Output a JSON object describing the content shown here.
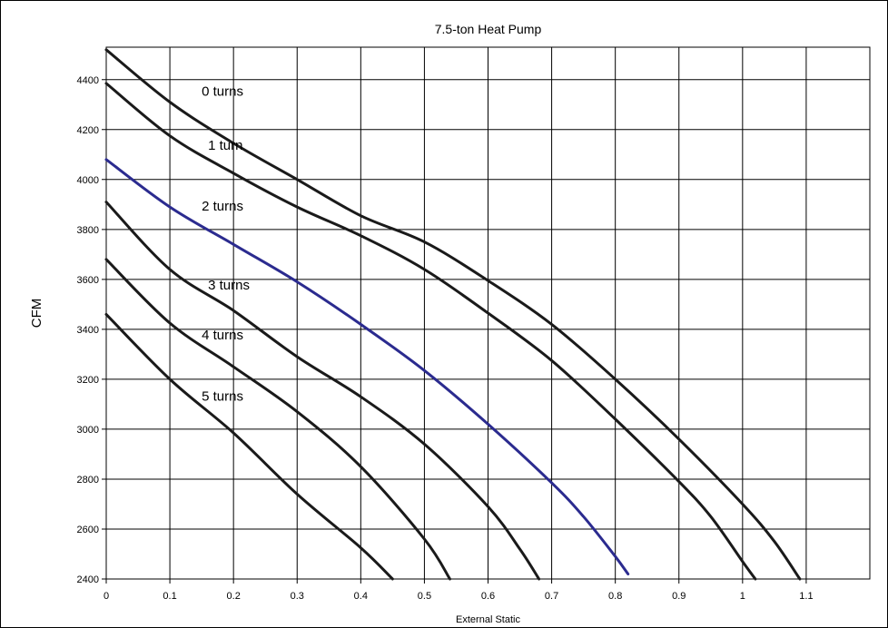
{
  "chart_data": {
    "type": "line",
    "title": "7.5-ton Heat Pump",
    "xlabel": "External Static",
    "ylabel": "CFM",
    "xlim": [
      0,
      1.2
    ],
    "ylim": [
      2400,
      4530
    ],
    "x_ticks": [
      "0",
      "0.1",
      "0.2",
      "0.3",
      "0.4",
      "0.5",
      "0.6",
      "0.7",
      "0.8",
      "0.9",
      "1",
      "1.1"
    ],
    "y_ticks": [
      "2400",
      "2600",
      "2800",
      "3000",
      "3200",
      "3400",
      "3600",
      "3800",
      "4000",
      "4200",
      "4400"
    ],
    "grid": true,
    "series": [
      {
        "name": "0 turns",
        "color": "#1a1a1a",
        "label_at": [
          0.15,
          4335
        ],
        "x": [
          0,
          0.1,
          0.2,
          0.3,
          0.4,
          0.5,
          0.6,
          0.7,
          0.8,
          0.9,
          1.0,
          1.05,
          1.09
        ],
        "y": [
          4520,
          4310,
          4145,
          4000,
          3855,
          3750,
          3595,
          3420,
          3200,
          2960,
          2700,
          2550,
          2400
        ]
      },
      {
        "name": "1 turn",
        "color": "#1a1a1a",
        "label_at": [
          0.16,
          4120
        ],
        "x": [
          0,
          0.1,
          0.2,
          0.3,
          0.4,
          0.5,
          0.6,
          0.7,
          0.8,
          0.9,
          0.95,
          1.0,
          1.02
        ],
        "y": [
          4385,
          4175,
          4025,
          3890,
          3775,
          3640,
          3465,
          3275,
          3040,
          2790,
          2650,
          2470,
          2400
        ]
      },
      {
        "name": "2 turns",
        "color": "#2b2b8f",
        "label_at": [
          0.15,
          3875
        ],
        "x": [
          0,
          0.1,
          0.2,
          0.3,
          0.4,
          0.5,
          0.6,
          0.7,
          0.75,
          0.8,
          0.82
        ],
        "y": [
          4080,
          3890,
          3740,
          3590,
          3420,
          3235,
          3020,
          2785,
          2650,
          2490,
          2420
        ]
      },
      {
        "name": "3 turns",
        "color": "#1a1a1a",
        "label_at": [
          0.16,
          3560
        ],
        "x": [
          0,
          0.1,
          0.2,
          0.3,
          0.4,
          0.5,
          0.6,
          0.65,
          0.68
        ],
        "y": [
          3910,
          3640,
          3475,
          3290,
          3130,
          2940,
          2690,
          2520,
          2400
        ]
      },
      {
        "name": "4 turns",
        "color": "#1a1a1a",
        "label_at": [
          0.15,
          3360
        ],
        "x": [
          0,
          0.1,
          0.2,
          0.3,
          0.4,
          0.5,
          0.54
        ],
        "y": [
          3680,
          3425,
          3250,
          3070,
          2850,
          2560,
          2400
        ]
      },
      {
        "name": "5 turns",
        "color": "#1a1a1a",
        "label_at": [
          0.15,
          3115
        ],
        "x": [
          0,
          0.1,
          0.2,
          0.3,
          0.4,
          0.45
        ],
        "y": [
          3460,
          3200,
          2985,
          2740,
          2525,
          2400
        ]
      }
    ]
  }
}
